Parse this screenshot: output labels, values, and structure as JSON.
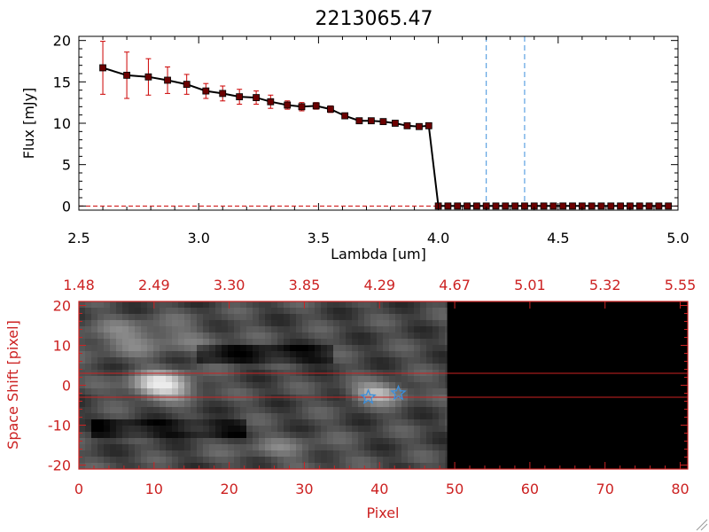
{
  "colors": {
    "axis_black": "#000000",
    "axis_red": "#cc2222",
    "errorbar": "#cc0000",
    "marker_fill": "#6b0000",
    "line": "#000000",
    "vline": "#3b8fdc",
    "star": "#3b8fdc",
    "hline": "#cc2222"
  },
  "chart_data": [
    {
      "type": "line",
      "title": "2213065.47",
      "xlabel": "Lambda [um]",
      "ylabel": "Flux [mJy]",
      "xlim": [
        2.5,
        5.0
      ],
      "ylim": [
        -0.5,
        20.5
      ],
      "xticks": [
        "2.5",
        "3.0",
        "3.5",
        "4.0",
        "4.5",
        "5.0"
      ],
      "yticks": [
        "0",
        "5",
        "10",
        "15",
        "20"
      ],
      "series": [
        {
          "x": [
            2.6,
            2.7,
            2.79,
            2.87,
            2.95,
            3.03,
            3.1,
            3.17,
            3.24,
            3.3,
            3.37,
            3.43,
            3.49,
            3.55,
            3.61,
            3.67,
            3.72,
            3.77,
            3.82,
            3.87,
            3.92,
            3.96,
            4.0,
            4.04,
            4.08,
            4.12,
            4.16,
            4.2,
            4.24,
            4.28,
            4.32,
            4.36,
            4.4,
            4.44,
            4.48,
            4.52,
            4.56,
            4.6,
            4.64,
            4.68,
            4.72,
            4.76,
            4.8,
            4.84,
            4.88,
            4.92,
            4.96
          ],
          "y": [
            16.7,
            15.8,
            15.6,
            15.2,
            14.7,
            13.9,
            13.6,
            13.2,
            13.1,
            12.6,
            12.2,
            12.0,
            12.1,
            11.7,
            10.9,
            10.3,
            10.3,
            10.2,
            10.0,
            9.7,
            9.6,
            9.7,
            0,
            0,
            0,
            0,
            0,
            0,
            0,
            0,
            0,
            0,
            0,
            0,
            0,
            0,
            0,
            0,
            0,
            0,
            0,
            0,
            0,
            0,
            0,
            0,
            0
          ],
          "err": [
            3.2,
            2.8,
            2.2,
            1.6,
            1.2,
            0.9,
            0.9,
            0.9,
            0.8,
            0.8,
            0.5,
            0.5,
            0.4,
            0.4,
            0.3,
            0.3,
            0.3,
            0.3,
            0.3,
            0.3,
            0.3,
            0.3,
            0,
            0,
            0,
            0,
            0,
            0,
            0,
            0,
            0,
            0,
            0,
            0,
            0,
            0,
            0,
            0,
            0,
            0,
            0,
            0,
            0,
            0,
            0,
            0,
            0
          ]
        }
      ],
      "vlines_x": [
        4.2,
        4.36
      ],
      "grid": false
    },
    {
      "type": "heatmap",
      "xlabel": "Pixel",
      "ylabel": "Space Shift [pixel]",
      "xlim": [
        0,
        81
      ],
      "ylim": [
        -21,
        21
      ],
      "xticks": [
        "0",
        "10",
        "20",
        "30",
        "40",
        "50",
        "60",
        "70",
        "80"
      ],
      "yticks": [
        "-20",
        "-10",
        "0",
        "10",
        "20"
      ],
      "top_axis_ticks": [
        "1.48",
        "2.49",
        "3.30",
        "3.85",
        "4.29",
        "4.67",
        "5.01",
        "5.32",
        "5.55"
      ],
      "data_extent_pixel": [
        0,
        49
      ],
      "hlines_y": [
        3,
        -3
      ],
      "stars": [
        {
          "x": 38.5,
          "y": -3
        },
        {
          "x": 42.5,
          "y": -2
        }
      ]
    }
  ]
}
